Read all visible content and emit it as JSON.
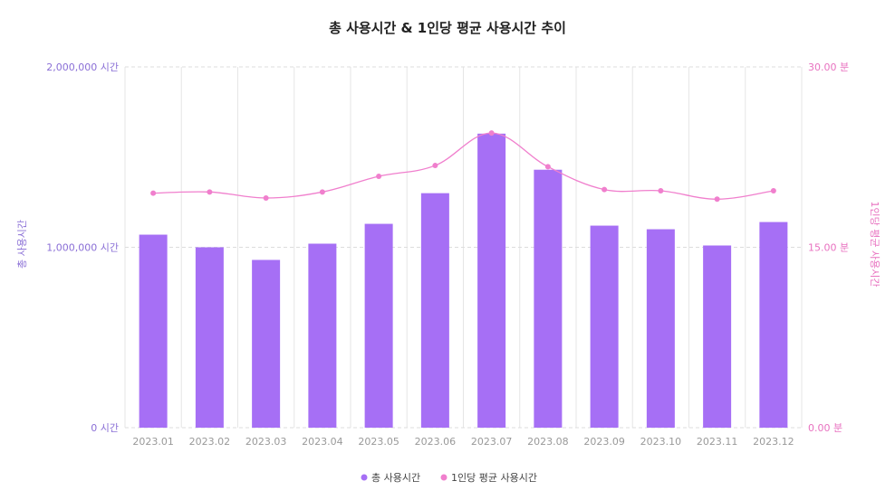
{
  "chart_data": {
    "type": "bar",
    "title": "총 사용시간 & 1인당 평균 사용시간 추이",
    "categories": [
      "2023.01",
      "2023.02",
      "2023.03",
      "2023.04",
      "2023.05",
      "2023.06",
      "2023.07",
      "2023.08",
      "2023.09",
      "2023.10",
      "2023.11",
      "2023.12"
    ],
    "series": [
      {
        "name": "총 사용시간",
        "kind": "bar",
        "axis": "left",
        "color": "#a66ff5",
        "values": [
          1070000,
          1000000,
          930000,
          1020000,
          1130000,
          1300000,
          1630000,
          1430000,
          1120000,
          1100000,
          1010000,
          1140000
        ]
      },
      {
        "name": "1인당 평균 사용시간",
        "kind": "line",
        "axis": "right",
        "color": "#f07fcd",
        "values": [
          19.5,
          19.6,
          19.1,
          19.6,
          20.9,
          21.8,
          24.5,
          21.7,
          19.8,
          19.7,
          19.0,
          19.7
        ]
      }
    ],
    "ylabel": "총 사용시간",
    "y2label": "1인당 평균 사용시간",
    "ylim": [
      0,
      2000000
    ],
    "y2lim": [
      0,
      30
    ],
    "yticks": [
      "0 시간",
      "1,000,000 시간",
      "2,000,000 시간"
    ],
    "y2ticks": [
      "0.00 분",
      "15.00 분",
      "30.00 분"
    ],
    "grid": true,
    "legend_position": "bottom-center"
  }
}
